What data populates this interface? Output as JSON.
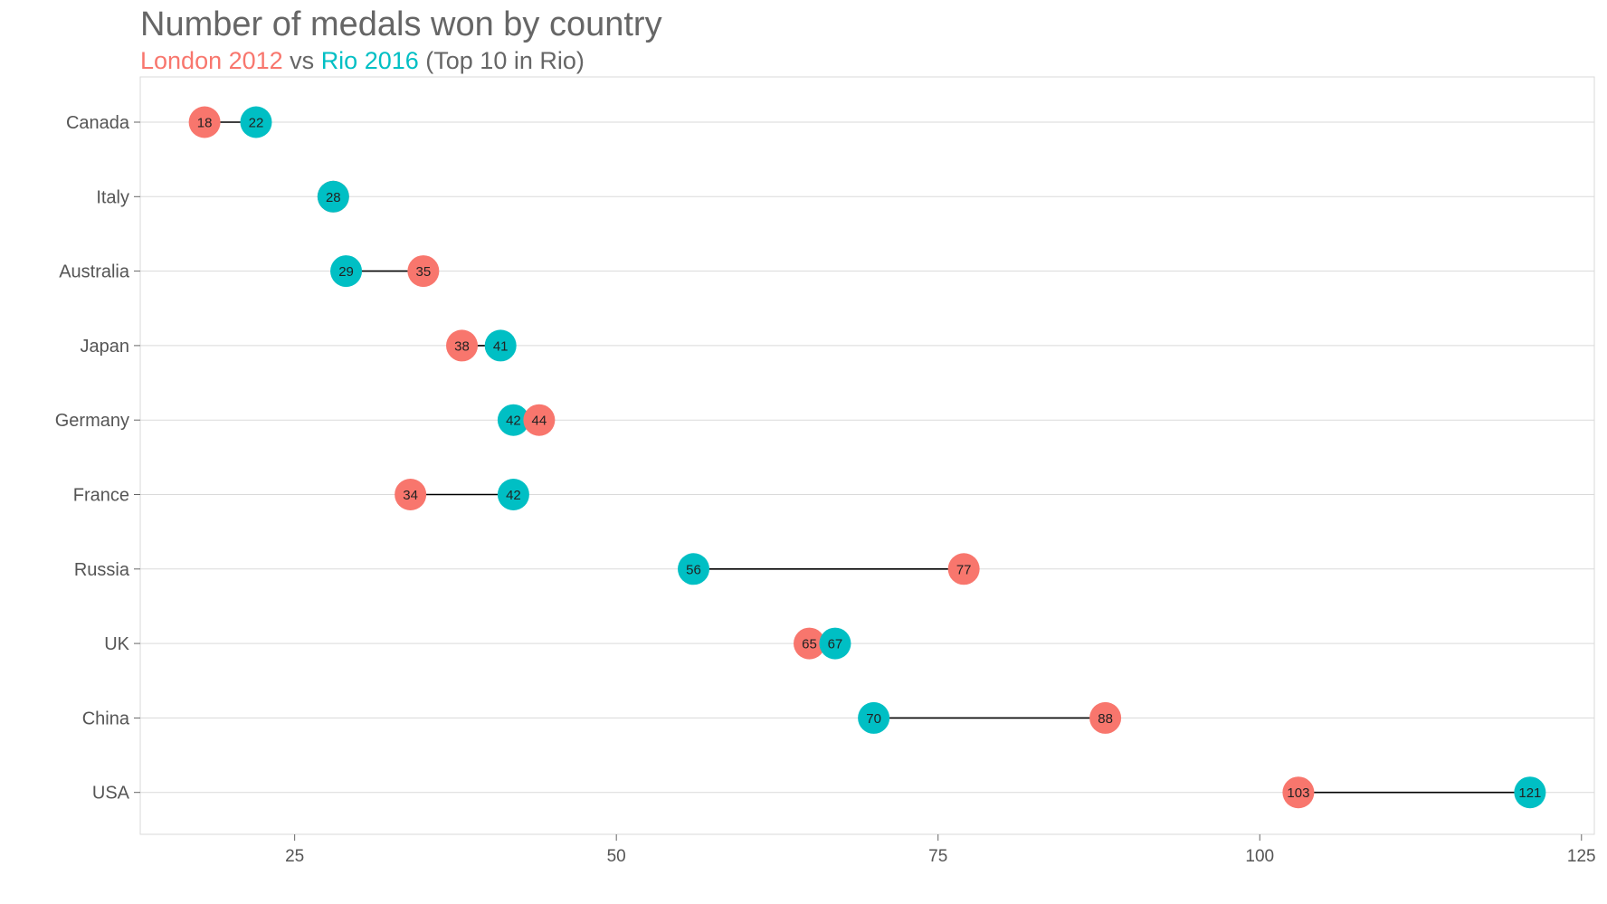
{
  "title": "Number of medals won by country",
  "subtitle": {
    "part1": "London 2012",
    "part2": " vs ",
    "part3": "Rio 2016",
    "part4": " (Top 10 in Rio)"
  },
  "colors": {
    "london": "#F8766D",
    "rio": "#00BFC4",
    "grid": "#DADADA",
    "text": "#666666"
  },
  "chart_data": {
    "type": "scatter",
    "subtype": "dumbbell",
    "title": "Number of medals won by country",
    "subtitle": "London 2012 vs Rio 2016 (Top 10 in Rio)",
    "categories": [
      "Canada",
      "Italy",
      "Australia",
      "Japan",
      "Germany",
      "France",
      "Russia",
      "UK",
      "China",
      "USA"
    ],
    "series": [
      {
        "name": "London 2012",
        "values": [
          18,
          28,
          35,
          38,
          44,
          34,
          77,
          65,
          88,
          103
        ]
      },
      {
        "name": "Rio 2016",
        "values": [
          22,
          28,
          29,
          41,
          42,
          42,
          56,
          67,
          70,
          121
        ]
      }
    ],
    "xticks": [
      25,
      50,
      75,
      100,
      125
    ],
    "xlim": [
      13,
      126
    ],
    "grid": true,
    "legend": "none",
    "xlabel": "",
    "ylabel": ""
  }
}
